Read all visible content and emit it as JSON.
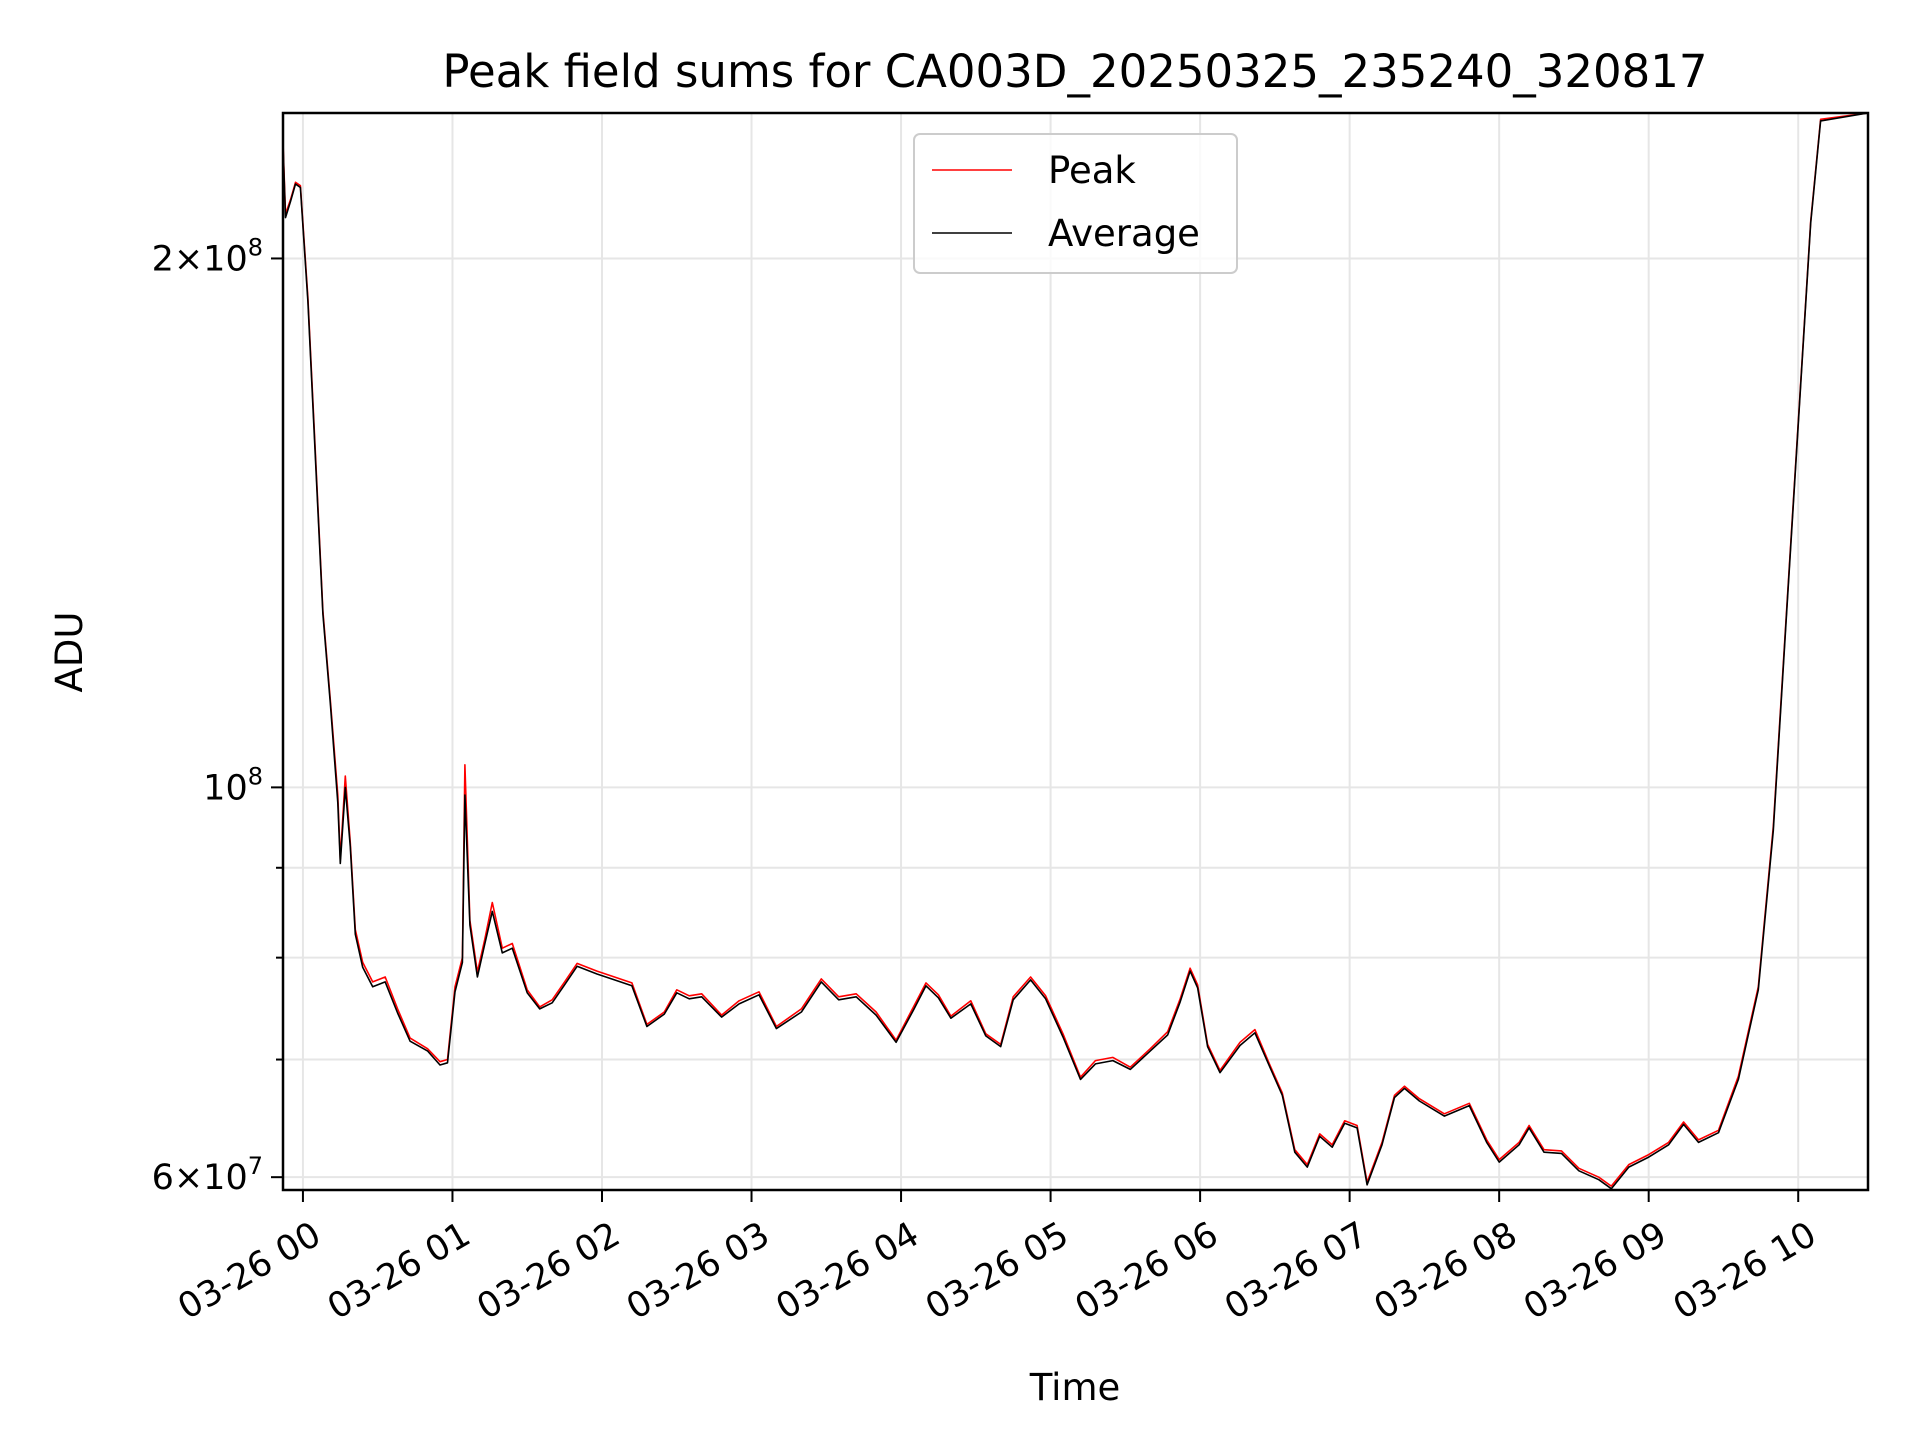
{
  "chart_data": {
    "type": "line",
    "title": "Peak field sums for CA003D_20250325_235240_320817",
    "xlabel": "Time",
    "ylabel": "ADU",
    "yscale": "log",
    "ylim": [
      59000000,
      242000000
    ],
    "xlim": [
      "03-25 23:52",
      "03-26 10:28"
    ],
    "grid": true,
    "legend_position": "top-center",
    "x_ticks": [
      "03-26 00",
      "03-26 01",
      "03-26 02",
      "03-26 03",
      "03-26 04",
      "03-26 05",
      "03-26 06",
      "03-26 07",
      "03-26 08",
      "03-26 09",
      "03-26 10"
    ],
    "y_ticks": [
      {
        "value": 60000000,
        "mantissa": "6",
        "exponent": "7"
      },
      {
        "value": 100000000,
        "mantissa": "",
        "exponent": "8"
      },
      {
        "value": 200000000,
        "mantissa": "2",
        "exponent": "8"
      }
    ],
    "series": [
      {
        "name": "Peak",
        "color": "#ff0000",
        "points": [
          [
            "03-25 23:52",
            233000000
          ],
          [
            "03-25 23:53",
            212000000
          ],
          [
            "03-25 23:55",
            216000000
          ],
          [
            "03-25 23:57",
            221000000
          ],
          [
            "03-25 23:59",
            220000000
          ],
          [
            "03-26 00:02",
            190000000
          ],
          [
            "03-26 00:05",
            155000000
          ],
          [
            "03-26 00:08",
            126000000
          ],
          [
            "03-26 00:11",
            112000000
          ],
          [
            "03-26 00:14",
            99000000
          ],
          [
            "03-26 00:15",
            91000000
          ],
          [
            "03-26 00:17",
            101500000
          ],
          [
            "03-26 00:19",
            93000000
          ],
          [
            "03-26 00:21",
            83000000
          ],
          [
            "03-26 00:24",
            79500000
          ],
          [
            "03-26 00:28",
            77500000
          ],
          [
            "03-26 00:33",
            78000000
          ],
          [
            "03-26 00:38",
            74800000
          ],
          [
            "03-26 00:43",
            72000000
          ],
          [
            "03-26 00:50",
            71000000
          ],
          [
            "03-26 00:55",
            69800000
          ],
          [
            "03-26 00:58",
            70000000
          ],
          [
            "03-26 01:01",
            77000000
          ],
          [
            "03-26 01:04",
            80000000
          ],
          [
            "03-26 01:05",
            103000000
          ],
          [
            "03-26 01:07",
            84000000
          ],
          [
            "03-26 01:10",
            78500000
          ],
          [
            "03-26 01:13",
            82000000
          ],
          [
            "03-26 01:16",
            86000000
          ],
          [
            "03-26 01:20",
            81000000
          ],
          [
            "03-26 01:24",
            81500000
          ],
          [
            "03-26 01:30",
            76700000
          ],
          [
            "03-26 01:35",
            75000000
          ],
          [
            "03-26 01:40",
            75700000
          ],
          [
            "03-26 01:45",
            77500000
          ],
          [
            "03-26 01:50",
            79400000
          ],
          [
            "03-26 01:58",
            78600000
          ],
          [
            "03-26 02:05",
            78000000
          ],
          [
            "03-26 02:12",
            77400000
          ],
          [
            "03-26 02:18",
            73300000
          ],
          [
            "03-26 02:25",
            74500000
          ],
          [
            "03-26 02:30",
            76700000
          ],
          [
            "03-26 02:35",
            76100000
          ],
          [
            "03-26 02:40",
            76300000
          ],
          [
            "03-26 02:48",
            74200000
          ],
          [
            "03-26 02:55",
            75600000
          ],
          [
            "03-26 03:03",
            76500000
          ],
          [
            "03-26 03:10",
            73100000
          ],
          [
            "03-26 03:20",
            74800000
          ],
          [
            "03-26 03:28",
            77800000
          ],
          [
            "03-26 03:35",
            76000000
          ],
          [
            "03-26 03:42",
            76300000
          ],
          [
            "03-26 03:50",
            74500000
          ],
          [
            "03-26 03:58",
            71800000
          ],
          [
            "03-26 04:05",
            75000000
          ],
          [
            "03-26 04:10",
            77400000
          ],
          [
            "03-26 04:15",
            76200000
          ],
          [
            "03-26 04:20",
            74100000
          ],
          [
            "03-26 04:28",
            75600000
          ],
          [
            "03-26 04:34",
            72400000
          ],
          [
            "03-26 04:40",
            71400000
          ],
          [
            "03-26 04:45",
            76000000
          ],
          [
            "03-26 04:52",
            78000000
          ],
          [
            "03-26 04:58",
            76100000
          ],
          [
            "03-26 05:05",
            72400000
          ],
          [
            "03-26 05:12",
            68400000
          ],
          [
            "03-26 05:18",
            69900000
          ],
          [
            "03-26 05:25",
            70200000
          ],
          [
            "03-26 05:32",
            69300000
          ],
          [
            "03-26 05:40",
            71000000
          ],
          [
            "03-26 05:47",
            72600000
          ],
          [
            "03-26 05:52",
            75800000
          ],
          [
            "03-26 05:56",
            78900000
          ],
          [
            "03-26 05:59",
            77200000
          ],
          [
            "03-26 06:03",
            71400000
          ],
          [
            "03-26 06:08",
            69000000
          ],
          [
            "03-26 06:16",
            71600000
          ],
          [
            "03-26 06:22",
            72800000
          ],
          [
            "03-26 06:28",
            69500000
          ],
          [
            "03-26 06:33",
            67000000
          ],
          [
            "03-26 06:38",
            62200000
          ],
          [
            "03-26 06:43",
            61000000
          ],
          [
            "03-26 06:48",
            63500000
          ],
          [
            "03-26 06:53",
            62600000
          ],
          [
            "03-26 06:58",
            64600000
          ],
          [
            "03-26 07:03",
            64200000
          ],
          [
            "03-26 07:07",
            59600000
          ],
          [
            "03-26 07:13",
            62800000
          ],
          [
            "03-26 07:18",
            66800000
          ],
          [
            "03-26 07:22",
            67600000
          ],
          [
            "03-26 07:28",
            66500000
          ],
          [
            "03-26 07:38",
            65200000
          ],
          [
            "03-26 07:48",
            66100000
          ],
          [
            "03-26 07:55",
            63000000
          ],
          [
            "03-26 08:00",
            61400000
          ],
          [
            "03-26 08:08",
            62800000
          ],
          [
            "03-26 08:12",
            64200000
          ],
          [
            "03-26 08:18",
            62200000
          ],
          [
            "03-26 08:25",
            62100000
          ],
          [
            "03-26 08:32",
            60700000
          ],
          [
            "03-26 08:40",
            60000000
          ],
          [
            "03-26 08:45",
            59300000
          ],
          [
            "03-26 08:52",
            61000000
          ],
          [
            "03-26 09:00",
            61800000
          ],
          [
            "03-26 09:08",
            62800000
          ],
          [
            "03-26 09:14",
            64500000
          ],
          [
            "03-26 09:20",
            63000000
          ],
          [
            "03-26 09:28",
            63800000
          ],
          [
            "03-26 09:36",
            68500000
          ],
          [
            "03-26 09:44",
            77000000
          ],
          [
            "03-26 09:50",
            95000000
          ],
          [
            "03-26 09:55",
            124000000
          ],
          [
            "03-26 10:01",
            170000000
          ],
          [
            "03-26 10:05",
            210000000
          ],
          [
            "03-26 10:09",
            240000000
          ],
          [
            "03-26 10:28",
            242000000
          ]
        ]
      },
      {
        "name": "Average",
        "color": "#000000",
        "points": [
          [
            "03-25 23:52",
            232000000
          ],
          [
            "03-25 23:53",
            211000000
          ],
          [
            "03-25 23:55",
            215500000
          ],
          [
            "03-25 23:57",
            220500000
          ],
          [
            "03-25 23:59",
            219500000
          ],
          [
            "03-26 00:02",
            189000000
          ],
          [
            "03-26 00:05",
            154000000
          ],
          [
            "03-26 00:08",
            125500000
          ],
          [
            "03-26 00:11",
            111500000
          ],
          [
            "03-26 00:14",
            98000000
          ],
          [
            "03-26 00:15",
            90500000
          ],
          [
            "03-26 00:17",
            100000000
          ],
          [
            "03-26 00:19",
            92500000
          ],
          [
            "03-26 00:21",
            82500000
          ],
          [
            "03-26 00:24",
            79000000
          ],
          [
            "03-26 00:28",
            77000000
          ],
          [
            "03-26 00:33",
            77500000
          ],
          [
            "03-26 00:38",
            74400000
          ],
          [
            "03-26 00:43",
            71700000
          ],
          [
            "03-26 00:50",
            70800000
          ],
          [
            "03-26 00:55",
            69500000
          ],
          [
            "03-26 00:58",
            69700000
          ],
          [
            "03-26 01:01",
            76500000
          ],
          [
            "03-26 01:04",
            79500000
          ],
          [
            "03-26 01:05",
            99000000
          ],
          [
            "03-26 01:07",
            83500000
          ],
          [
            "03-26 01:10",
            78000000
          ],
          [
            "03-26 01:13",
            81500000
          ],
          [
            "03-26 01:16",
            85000000
          ],
          [
            "03-26 01:20",
            80500000
          ],
          [
            "03-26 01:24",
            81000000
          ],
          [
            "03-26 01:30",
            76400000
          ],
          [
            "03-26 01:35",
            74800000
          ],
          [
            "03-26 01:40",
            75400000
          ],
          [
            "03-26 01:45",
            77200000
          ],
          [
            "03-26 01:50",
            79100000
          ],
          [
            "03-26 01:58",
            78300000
          ],
          [
            "03-26 02:05",
            77700000
          ],
          [
            "03-26 02:12",
            77100000
          ],
          [
            "03-26 02:18",
            73100000
          ],
          [
            "03-26 02:25",
            74300000
          ],
          [
            "03-26 02:30",
            76400000
          ],
          [
            "03-26 02:35",
            75800000
          ],
          [
            "03-26 02:40",
            76000000
          ],
          [
            "03-26 02:48",
            74000000
          ],
          [
            "03-26 02:55",
            75300000
          ],
          [
            "03-26 03:03",
            76200000
          ],
          [
            "03-26 03:10",
            72900000
          ],
          [
            "03-26 03:20",
            74500000
          ],
          [
            "03-26 03:28",
            77500000
          ],
          [
            "03-26 03:35",
            75700000
          ],
          [
            "03-26 03:42",
            76000000
          ],
          [
            "03-26 03:50",
            74200000
          ],
          [
            "03-26 03:58",
            71600000
          ],
          [
            "03-26 04:05",
            74700000
          ],
          [
            "03-26 04:10",
            77100000
          ],
          [
            "03-26 04:15",
            75900000
          ],
          [
            "03-26 04:20",
            73900000
          ],
          [
            "03-26 04:28",
            75300000
          ],
          [
            "03-26 04:34",
            72200000
          ],
          [
            "03-26 04:40",
            71200000
          ],
          [
            "03-26 04:45",
            75700000
          ],
          [
            "03-26 04:52",
            77700000
          ],
          [
            "03-26 04:58",
            75800000
          ],
          [
            "03-26 05:05",
            72100000
          ],
          [
            "03-26 05:12",
            68200000
          ],
          [
            "03-26 05:18",
            69600000
          ],
          [
            "03-26 05:25",
            69900000
          ],
          [
            "03-26 05:32",
            69100000
          ],
          [
            "03-26 05:40",
            70800000
          ],
          [
            "03-26 05:47",
            72300000
          ],
          [
            "03-26 05:52",
            75500000
          ],
          [
            "03-26 05:56",
            78600000
          ],
          [
            "03-26 05:59",
            76900000
          ],
          [
            "03-26 06:03",
            71200000
          ],
          [
            "03-26 06:08",
            68800000
          ],
          [
            "03-26 06:16",
            71300000
          ],
          [
            "03-26 06:22",
            72500000
          ],
          [
            "03-26 06:28",
            69300000
          ],
          [
            "03-26 06:33",
            66800000
          ],
          [
            "03-26 06:38",
            62000000
          ],
          [
            "03-26 06:43",
            60800000
          ],
          [
            "03-26 06:48",
            63300000
          ],
          [
            "03-26 06:53",
            62400000
          ],
          [
            "03-26 06:58",
            64400000
          ],
          [
            "03-26 07:03",
            64000000
          ],
          [
            "03-26 07:07",
            59400000
          ],
          [
            "03-26 07:13",
            62600000
          ],
          [
            "03-26 07:18",
            66600000
          ],
          [
            "03-26 07:22",
            67400000
          ],
          [
            "03-26 07:28",
            66300000
          ],
          [
            "03-26 07:38",
            65000000
          ],
          [
            "03-26 07:48",
            65900000
          ],
          [
            "03-26 07:55",
            62800000
          ],
          [
            "03-26 08:00",
            61200000
          ],
          [
            "03-26 08:08",
            62600000
          ],
          [
            "03-26 08:12",
            64000000
          ],
          [
            "03-26 08:18",
            62000000
          ],
          [
            "03-26 08:25",
            61900000
          ],
          [
            "03-26 08:32",
            60500000
          ],
          [
            "03-26 08:40",
            59800000
          ],
          [
            "03-26 08:45",
            59100000
          ],
          [
            "03-26 08:52",
            60800000
          ],
          [
            "03-26 09:00",
            61600000
          ],
          [
            "03-26 09:08",
            62600000
          ],
          [
            "03-26 09:14",
            64300000
          ],
          [
            "03-26 09:20",
            62800000
          ],
          [
            "03-26 09:28",
            63600000
          ],
          [
            "03-26 09:36",
            68200000
          ],
          [
            "03-26 09:44",
            76700000
          ],
          [
            "03-26 09:50",
            94500000
          ],
          [
            "03-26 09:55",
            123500000
          ],
          [
            "03-26 10:01",
            169500000
          ],
          [
            "03-26 10:05",
            209500000
          ],
          [
            "03-26 10:09",
            239500000
          ],
          [
            "03-26 10:28",
            242000000
          ]
        ]
      }
    ]
  }
}
